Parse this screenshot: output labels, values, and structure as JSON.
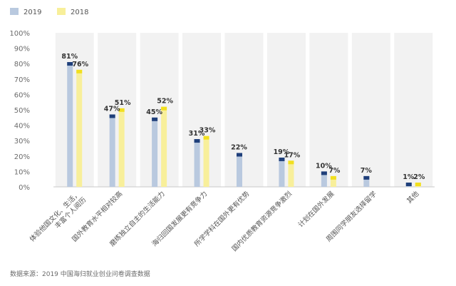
{
  "chart_data": {
    "type": "bar",
    "categories": [
      "体验他国文化、生活，丰富个人阅历",
      "国外教育水平相对较高",
      "磨练独立自主的生活能力",
      "海归回国发展更有竞争力",
      "所学学科在国外更有优势",
      "国内优质教育资源竞争激烈",
      "计划在国外发展",
      "周围同学朋友选择留学",
      "其他"
    ],
    "series": [
      {
        "name": "2019",
        "values": [
          81,
          47,
          45,
          31,
          22,
          19,
          10,
          7,
          1
        ],
        "labels": [
          "81%",
          "47%",
          "45%",
          "31%",
          "22%",
          "19%",
          "10%",
          "7%",
          "1%"
        ]
      },
      {
        "name": "2018",
        "values": [
          76,
          51,
          52,
          33,
          null,
          17,
          7,
          null,
          2
        ],
        "labels": [
          "76%",
          "51%",
          "52%",
          "33%",
          "",
          "17%",
          "7%",
          "",
          "2%"
        ]
      }
    ],
    "ylim": [
      0,
      100
    ],
    "yticks": [
      "0%",
      "10%",
      "20%",
      "30%",
      "40%",
      "50%",
      "60%",
      "70%",
      "80%",
      "90%",
      "100%"
    ],
    "legend_position": "top-left",
    "grid": false
  },
  "colors": {
    "series_2019": "#b9c9df",
    "series_2019_cap": "#1f3f7a",
    "series_2018": "#f8ef9a",
    "series_2018_cap": "#f1df1f",
    "column_band": "#f2f2f2"
  },
  "source_note": "数据来源：2019 中国海归就业创业问卷调查数据"
}
